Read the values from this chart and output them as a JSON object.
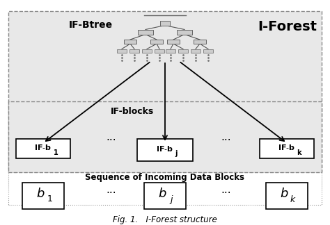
{
  "bg_color": "#f0f0f0",
  "white": "#ffffff",
  "light_gray": "#e8e8e8",
  "fig_caption": "Fig. 1.   I-Forest structure",
  "iforest_label": "I-Forest",
  "ifbtree_label": "IF-Btree",
  "ifblocks_label": "IF-blocks",
  "seq_label": "Sequence of Incoming Data Blocks",
  "tree_color": "#888888",
  "tree_fill": "#dddddd",
  "box_edge": "#333333"
}
